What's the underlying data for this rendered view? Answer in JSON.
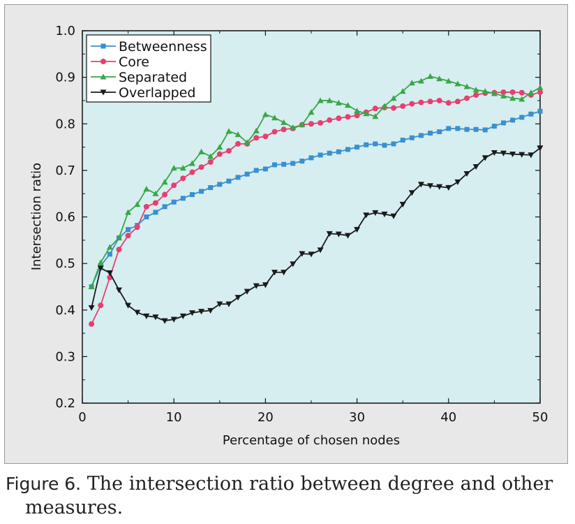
{
  "caption": {
    "label": "Figure 6.",
    "line1": "The intersection ratio between degree and other",
    "line2": "measures."
  },
  "chart_data": {
    "type": "line",
    "xlabel": "Percentage of chosen nodes",
    "ylabel": "Intersection ratio",
    "xlim": [
      0,
      50
    ],
    "ylim": [
      0.2,
      1.0
    ],
    "xticks": [
      0,
      10,
      20,
      30,
      40,
      50
    ],
    "yticks": [
      0.2,
      0.3,
      0.4,
      0.5,
      0.6,
      0.7,
      0.8,
      0.9,
      1.0
    ],
    "ytick_labels": [
      "0.2",
      "0.3",
      "0.4",
      "0.5",
      "0.6",
      "0.7",
      "0.8",
      "0.9",
      "1.0"
    ],
    "plot_background": "#d6eef0",
    "grid": false,
    "legend_position": "top-left",
    "x": [
      1,
      2,
      3,
      4,
      5,
      6,
      7,
      8,
      9,
      10,
      11,
      12,
      13,
      14,
      15,
      16,
      17,
      18,
      19,
      20,
      21,
      22,
      23,
      24,
      25,
      26,
      27,
      28,
      29,
      30,
      31,
      32,
      33,
      34,
      35,
      36,
      37,
      38,
      39,
      40,
      41,
      42,
      43,
      44,
      45,
      46,
      47,
      48,
      49,
      50
    ],
    "series": [
      {
        "name": "Betweenness",
        "color": "#3a8fd1",
        "marker": "square",
        "values": [
          0.45,
          0.495,
          0.52,
          0.555,
          0.573,
          0.582,
          0.6,
          0.61,
          0.622,
          0.632,
          0.64,
          0.648,
          0.655,
          0.663,
          0.67,
          0.677,
          0.685,
          0.692,
          0.7,
          0.703,
          0.712,
          0.713,
          0.715,
          0.72,
          0.727,
          0.733,
          0.737,
          0.74,
          0.745,
          0.75,
          0.755,
          0.757,
          0.754,
          0.757,
          0.765,
          0.77,
          0.775,
          0.78,
          0.783,
          0.79,
          0.79,
          0.788,
          0.788,
          0.787,
          0.795,
          0.802,
          0.808,
          0.814,
          0.821,
          0.827
        ]
      },
      {
        "name": "Core",
        "color": "#e5406e",
        "marker": "circle",
        "values": [
          0.37,
          0.41,
          0.47,
          0.53,
          0.56,
          0.578,
          0.622,
          0.63,
          0.648,
          0.668,
          0.683,
          0.696,
          0.707,
          0.718,
          0.735,
          0.742,
          0.757,
          0.757,
          0.77,
          0.773,
          0.783,
          0.788,
          0.79,
          0.798,
          0.8,
          0.802,
          0.808,
          0.812,
          0.815,
          0.818,
          0.825,
          0.833,
          0.835,
          0.834,
          0.838,
          0.843,
          0.846,
          0.848,
          0.85,
          0.845,
          0.848,
          0.855,
          0.862,
          0.866,
          0.867,
          0.868,
          0.868,
          0.867,
          0.862,
          0.868
        ]
      },
      {
        "name": "Separated",
        "color": "#3aa648",
        "marker": "triangle-up",
        "values": [
          0.45,
          0.502,
          0.535,
          0.555,
          0.61,
          0.627,
          0.66,
          0.65,
          0.675,
          0.705,
          0.705,
          0.715,
          0.74,
          0.73,
          0.75,
          0.784,
          0.777,
          0.76,
          0.785,
          0.82,
          0.813,
          0.803,
          0.792,
          0.798,
          0.825,
          0.85,
          0.85,
          0.845,
          0.84,
          0.828,
          0.822,
          0.816,
          0.838,
          0.855,
          0.87,
          0.888,
          0.892,
          0.902,
          0.897,
          0.892,
          0.886,
          0.88,
          0.873,
          0.87,
          0.865,
          0.86,
          0.855,
          0.853,
          0.867,
          0.878
        ]
      },
      {
        "name": "Overlapped",
        "color": "#1a1a1a",
        "marker": "triangle-down",
        "values": [
          0.405,
          0.49,
          0.48,
          0.443,
          0.41,
          0.395,
          0.387,
          0.385,
          0.377,
          0.38,
          0.387,
          0.394,
          0.397,
          0.399,
          0.413,
          0.413,
          0.427,
          0.44,
          0.452,
          0.454,
          0.481,
          0.481,
          0.499,
          0.521,
          0.52,
          0.529,
          0.564,
          0.563,
          0.56,
          0.573,
          0.604,
          0.609,
          0.606,
          0.602,
          0.627,
          0.652,
          0.67,
          0.667,
          0.665,
          0.663,
          0.675,
          0.693,
          0.708,
          0.727,
          0.738,
          0.737,
          0.735,
          0.734,
          0.733,
          0.748
        ]
      }
    ]
  }
}
